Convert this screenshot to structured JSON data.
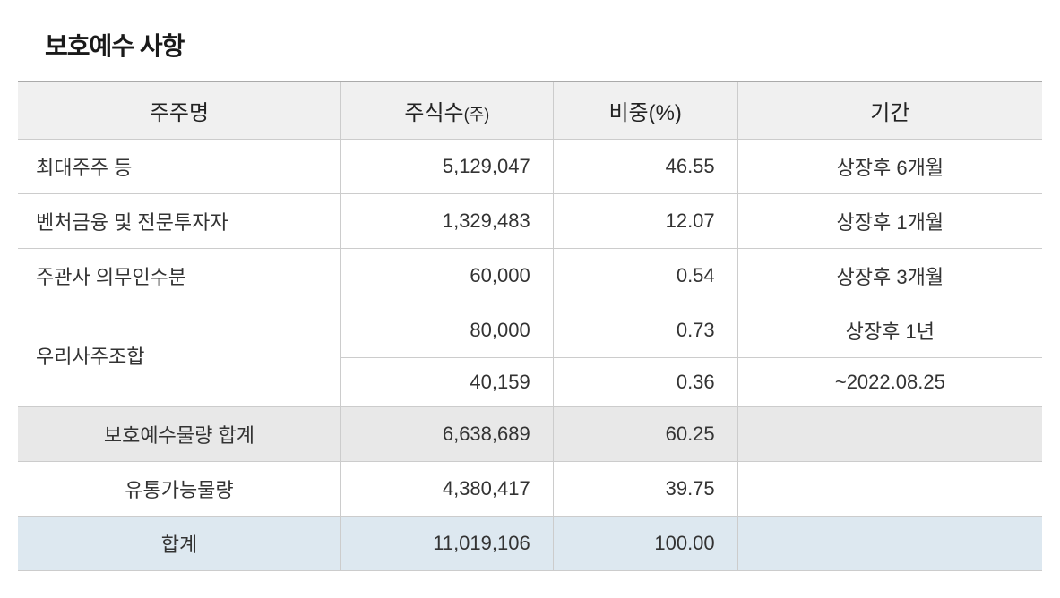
{
  "title": "보호예수 사항",
  "headers": {
    "shareholder": "주주명",
    "shares": "주식수",
    "shares_unit": "(주)",
    "ratio": "비중(%)",
    "period": "기간"
  },
  "rows": [
    {
      "name": "최대주주 등",
      "shares": "5,129,047",
      "ratio": "46.55",
      "period": "상장후 6개월"
    },
    {
      "name": "벤처금융 및 전문투자자",
      "shares": "1,329,483",
      "ratio": "12.07",
      "period": "상장후 1개월"
    },
    {
      "name": "주관사 의무인수분",
      "shares": "60,000",
      "ratio": "0.54",
      "period": "상장후 3개월"
    }
  ],
  "merged": {
    "name": "우리사주조합",
    "sub": [
      {
        "shares": "80,000",
        "ratio": "0.73",
        "period": "상장후 1년"
      },
      {
        "shares": "40,159",
        "ratio": "0.36",
        "period": "~2022.08.25"
      }
    ]
  },
  "subtotal": {
    "label": "보호예수물량 합계",
    "shares": "6,638,689",
    "ratio": "60.25"
  },
  "tradable": {
    "label": "유통가능물량",
    "shares": "4,380,417",
    "ratio": "39.75"
  },
  "total": {
    "label": "합계",
    "shares": "11,019,106",
    "ratio": "100.00"
  },
  "colors": {
    "header_bg": "#f0f0f0",
    "subtotal_bg": "#e8e8e8",
    "total_bg": "#dde8f0",
    "border": "#cccccc",
    "text": "#333333"
  }
}
